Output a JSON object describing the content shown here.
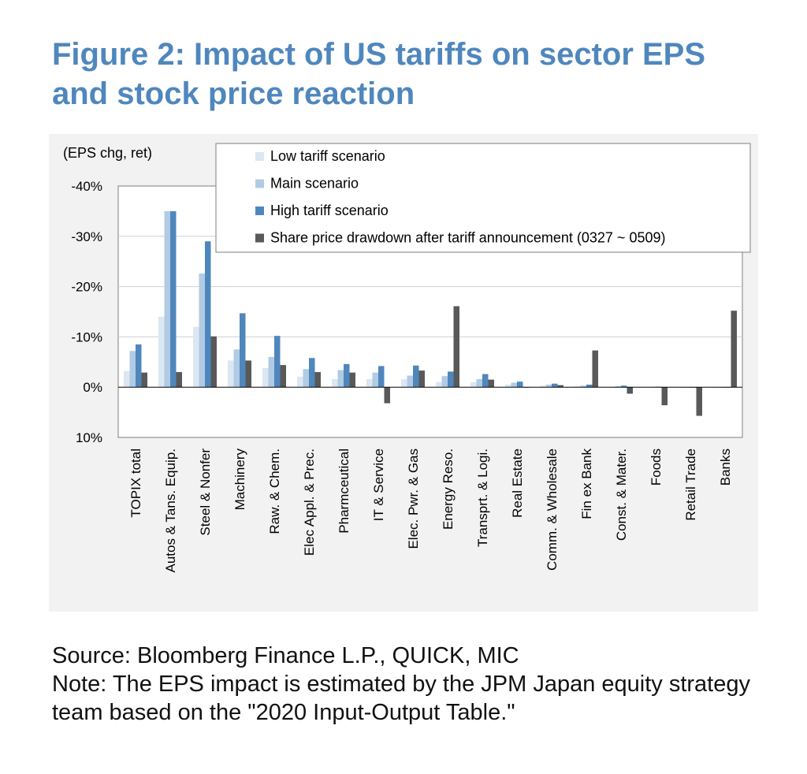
{
  "title": "Figure 2: Impact of US tariffs on sector EPS and stock price reaction",
  "source": "Source: Bloomberg Finance L.P., QUICK, MIC",
  "note": "Note: The EPS impact is estimated by the JPM Japan equity strategy team based on the \"2020 Input-Output Table.\"",
  "chart_data": {
    "type": "bar",
    "ylabel": "(EPS chg, ret)",
    "y_axis_inverted": true,
    "ylim": [
      10,
      -40
    ],
    "yticks": [
      -40,
      -30,
      -20,
      -10,
      0,
      10
    ],
    "ytick_labels": [
      "-40%",
      "-30%",
      "-20%",
      "-10%",
      "0%",
      "10%"
    ],
    "grid": "horizontal",
    "legend_position": "top",
    "categories": [
      "TOPIX total",
      "Autos & Tans. Equip.",
      "Steel & Nonfer",
      "Machinery",
      "Raw. & Chem.",
      "Elec Appl. & Prec.",
      "Pharmceutical",
      "IT & Service",
      "Elec. Pwr. & Gas",
      "Energy Reso.",
      "Transprt. & Logi.",
      "Real Estate",
      "Comm. & Wholesale",
      "Fin ex Bank",
      "Const. & Mater.",
      "Foods",
      "Retail Trade",
      "Banks"
    ],
    "series": [
      {
        "name": "Low tariff scenario",
        "color": "#dbe7f3",
        "values": [
          -3.2,
          -14,
          -12,
          -5.3,
          -3.8,
          -2.1,
          -1.6,
          -1.6,
          -1.6,
          -1.0,
          -1.0,
          -0.5,
          -0.3,
          -0.2,
          -0.1,
          0.0,
          0.0,
          0.0
        ]
      },
      {
        "name": "Main scenario",
        "color": "#b1cbe4",
        "values": [
          -7.2,
          -35,
          -22.6,
          -7.5,
          -6.0,
          -3.6,
          -3.4,
          -2.9,
          -2.3,
          -2.2,
          -1.6,
          -0.9,
          -0.5,
          -0.3,
          -0.2,
          -0.1,
          0.0,
          0.0
        ]
      },
      {
        "name": "High tariff scenario",
        "color": "#4f87bd",
        "values": [
          -8.5,
          -35,
          -29,
          -14.7,
          -10.2,
          -5.8,
          -4.6,
          -4.2,
          -4.3,
          -3.1,
          -2.6,
          -1.1,
          -0.7,
          -0.5,
          -0.3,
          -0.1,
          0.0,
          0.0
        ]
      },
      {
        "name": "Share price drawdown after tariff announcement (0327 ~ 0509)",
        "color": "#595959",
        "values": [
          -2.9,
          -3.0,
          -10.1,
          -5.3,
          -4.4,
          -3.0,
          -2.9,
          3.2,
          -3.3,
          -16.1,
          -1.5,
          0.0,
          -0.4,
          -7.3,
          1.3,
          3.6,
          5.7,
          -15.2
        ]
      }
    ]
  }
}
